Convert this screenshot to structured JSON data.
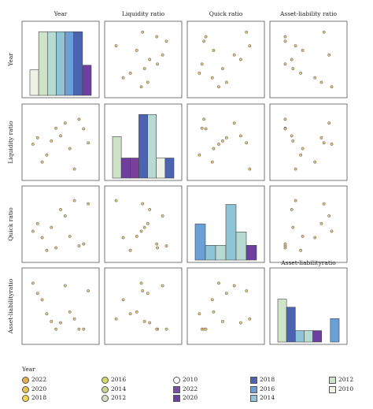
{
  "chart_data": {
    "type": "scatter-matrix",
    "variables": [
      "Year",
      "Liquidity ratio",
      "Quick ratio",
      "Asset-liability ratio"
    ],
    "col_labels": [
      "Year",
      "Liquidity ratio",
      "Quick ratio",
      "Asset-liability ratio"
    ],
    "row_labels": [
      "Year",
      "Liquidity ratio",
      "Quick ratio",
      "Asset-liabilityratio"
    ],
    "diag_labels": [
      "",
      "",
      "",
      "Asset-liabilityratio"
    ],
    "points": [
      {
        "year": 2010,
        "liq": 0.47,
        "quick": 0.39,
        "asset": 0.86
      },
      {
        "year": 2011,
        "liq": 0.57,
        "quick": 0.51,
        "asset": 0.7
      },
      {
        "year": 2012,
        "liq": 0.19,
        "quick": 0.29,
        "asset": 0.6
      },
      {
        "year": 2013,
        "liq": 0.3,
        "quick": 0.09,
        "asset": 0.38
      },
      {
        "year": 2014,
        "liq": 0.52,
        "quick": 0.45,
        "asset": 0.26
      },
      {
        "year": 2015,
        "liq": 0.72,
        "quick": 0.13,
        "asset": 0.14
      },
      {
        "year": 2016,
        "liq": 0.6,
        "quick": 0.73,
        "asset": 0.24
      },
      {
        "year": 2017,
        "liq": 0.8,
        "quick": 0.63,
        "asset": 0.82
      },
      {
        "year": 2018,
        "liq": 0.4,
        "quick": 0.31,
        "asset": 0.41
      },
      {
        "year": 2019,
        "liq": 0.08,
        "quick": 0.87,
        "asset": 0.3
      },
      {
        "year": 2020,
        "liq": 0.86,
        "quick": 0.16,
        "asset": 0.14
      },
      {
        "year": 2021,
        "liq": 0.71,
        "quick": 0.19,
        "asset": 0.14
      },
      {
        "year": 2022,
        "liq": 0.49,
        "quick": 0.82,
        "asset": 0.74
      }
    ],
    "year_range": [
      2009,
      2023
    ],
    "hist_year": {
      "bars": [
        {
          "color": "#eef2e4",
          "height": 0.38
        },
        {
          "color": "#cfe3c9",
          "height": 0.95
        },
        {
          "color": "#b7dbd2",
          "height": 0.95
        },
        {
          "color": "#8fc3d6",
          "height": 0.95
        },
        {
          "color": "#6aa0d8",
          "height": 0.95
        },
        {
          "color": "#4b63b0",
          "height": 0.95
        },
        {
          "color": "#6e3ea1",
          "height": 0.45
        }
      ]
    },
    "hist_liq": {
      "bars": [
        {
          "color": "#cfe3c9",
          "height": 0.62
        },
        {
          "color": "#6e3ea1",
          "height": 0.3
        },
        {
          "color": "#7a3f98",
          "height": 0.3
        },
        {
          "color": "#4b63b0",
          "height": 0.95
        },
        {
          "color": "#b7dbd2",
          "height": 0.95
        },
        {
          "color": "#eef2e4",
          "height": 0.3
        },
        {
          "color": "#4b63b0",
          "height": 0.3
        }
      ]
    },
    "hist_quick": {
      "bars": [
        {
          "color": "#6aa0d8",
          "height": 0.54
        },
        {
          "color": "#8fc3d6",
          "height": 0.22
        },
        {
          "color": "#b7dbd2",
          "height": 0.22
        },
        {
          "color": "#8fc3d6",
          "height": 0.83
        },
        {
          "color": "#b7dbd2",
          "height": 0.42
        },
        {
          "color": "#6e3ea1",
          "height": 0.22
        }
      ]
    },
    "hist_asset": {
      "bars": [
        {
          "color": "#cfe3c9",
          "height": 0.64
        },
        {
          "color": "#4b63b0",
          "height": 0.52
        },
        {
          "color": "#8fc3d6",
          "height": 0.17
        },
        {
          "color": "#b7dbd2",
          "height": 0.17
        },
        {
          "color": "#6e3ea1",
          "height": 0.17
        },
        {
          "color": "#ffffff",
          "height": 0.0
        },
        {
          "color": "#6aa0d8",
          "height": 0.35
        }
      ]
    },
    "point_fill": "#e3c27a",
    "point_stroke": "#555555"
  },
  "legend": {
    "title": "Year",
    "items": [
      {
        "label": "2022",
        "color": "#e3b04a",
        "shape": "dot"
      },
      {
        "label": "2020",
        "color": "#e8c34f",
        "shape": "dot"
      },
      {
        "label": "2018",
        "color": "#f1d84f",
        "shape": "dot"
      },
      {
        "label": "2016",
        "color": "#d3d96e",
        "shape": "dot"
      },
      {
        "label": "2014",
        "color": "#c9d78e",
        "shape": "dot"
      },
      {
        "label": "2012",
        "color": "#d6dfc5",
        "shape": "dot"
      },
      {
        "label": "2010",
        "color": "#ffffff",
        "shape": "dot"
      },
      {
        "label": "2022",
        "color": "#7a4ea6",
        "shape": "sq"
      },
      {
        "label": "2020",
        "color": "#6e3ea1",
        "shape": "sq"
      },
      {
        "label": "2018",
        "color": "#4b63b0",
        "shape": "sq"
      },
      {
        "label": "2016",
        "color": "#6aa0d8",
        "shape": "sq"
      },
      {
        "label": "2014",
        "color": "#8fc3d6",
        "shape": "sq"
      },
      {
        "label": "2012",
        "color": "#cfe3c9",
        "shape": "sq"
      },
      {
        "label": "2010",
        "color": "#eef2e4",
        "shape": "sq"
      }
    ]
  }
}
